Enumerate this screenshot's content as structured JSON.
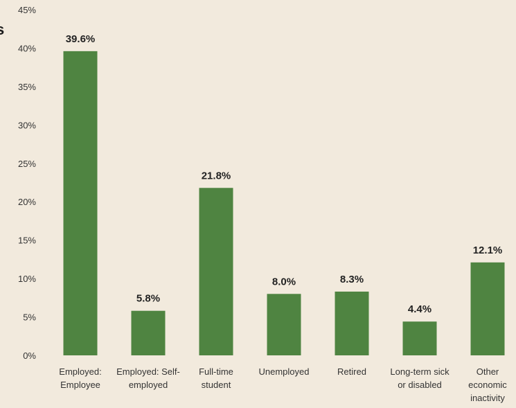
{
  "cut_text": "s",
  "colors": {
    "bar": "#4f8441",
    "background": "#f2eadd",
    "text": "#333333",
    "label": "#222222"
  },
  "chart_data": {
    "type": "bar",
    "categories": [
      [
        "Employed:",
        "Employee"
      ],
      [
        "Employed: Self-",
        "employed"
      ],
      [
        "Full-time",
        "student"
      ],
      [
        "Unemployed"
      ],
      [
        "Retired"
      ],
      [
        "Long-term sick",
        "or disabled"
      ],
      [
        "Other",
        "economic",
        "inactivity"
      ]
    ],
    "values": [
      39.6,
      5.8,
      21.8,
      8.0,
      8.3,
      4.4,
      12.1
    ],
    "data_labels": [
      "39.6%",
      "5.8%",
      "21.8%",
      "8.0%",
      "8.3%",
      "4.4%",
      "12.1%"
    ],
    "y_ticks": [
      "0%",
      "5%",
      "10%",
      "15%",
      "20%",
      "25%",
      "30%",
      "35%",
      "40%",
      "45%"
    ],
    "ylim": [
      0,
      45
    ],
    "grid": false,
    "legend": "none"
  }
}
